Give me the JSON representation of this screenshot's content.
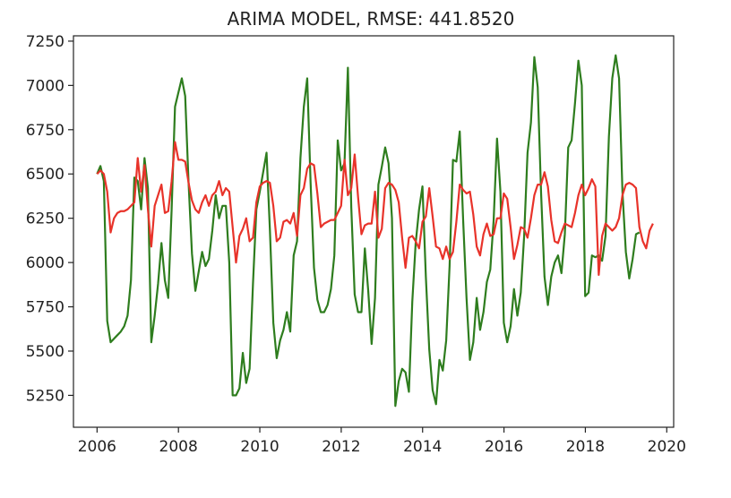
{
  "chart_data": {
    "type": "line",
    "title": "ARIMA MODEL, RMSE: 441.8520",
    "xlabel": "",
    "ylabel": "",
    "xlim": [
      2005.42,
      2020.17
    ],
    "ylim": [
      5070,
      7280
    ],
    "x_ticks": [
      2006,
      2008,
      2010,
      2012,
      2014,
      2016,
      2018,
      2020
    ],
    "y_ticks": [
      5250,
      5500,
      5750,
      6000,
      6250,
      6500,
      6750,
      7000,
      7250
    ],
    "grid": false,
    "legend": "none",
    "series": [
      {
        "color": "#2e7d1e",
        "x_start": 2006.0,
        "x_step": 0.0833,
        "values": [
          6500,
          6545,
          6460,
          5670,
          5550,
          5570,
          5590,
          5610,
          5640,
          5700,
          5900,
          6480,
          6460,
          6300,
          6590,
          6420,
          5550,
          5700,
          5880,
          6110,
          5900,
          5800,
          6300,
          6880,
          6960,
          7040,
          6940,
          6450,
          6050,
          5840,
          5950,
          6060,
          5980,
          6020,
          6180,
          6380,
          6250,
          6320,
          6320,
          6000,
          5250,
          5250,
          5290,
          5490,
          5320,
          5400,
          5880,
          6300,
          6400,
          6510,
          6620,
          6180,
          5660,
          5460,
          5560,
          5620,
          5720,
          5610,
          6040,
          6120,
          6590,
          6880,
          7040,
          6450,
          5970,
          5790,
          5720,
          5720,
          5760,
          5850,
          6040,
          6690,
          6520,
          6560,
          7100,
          6310,
          5820,
          5720,
          5720,
          6080,
          5840,
          5540,
          5800,
          6440,
          6540,
          6650,
          6560,
          6250,
          5190,
          5330,
          5400,
          5380,
          5270,
          5780,
          6110,
          6300,
          6430,
          5920,
          5510,
          5280,
          5200,
          5450,
          5390,
          5560,
          5980,
          6580,
          6570,
          6740,
          6240,
          5800,
          5450,
          5550,
          5800,
          5620,
          5720,
          5890,
          5960,
          6240,
          6700,
          6400,
          5660,
          5550,
          5640,
          5850,
          5700,
          5830,
          6150,
          6620,
          6790,
          7160,
          6990,
          6390,
          5920,
          5760,
          5920,
          6000,
          6040,
          5940,
          6160,
          6650,
          6690,
          6900,
          7140,
          7000,
          5810,
          5830,
          6040,
          6030,
          6040,
          6010,
          6150,
          6710,
          7040,
          7170,
          7040,
          6400,
          6060,
          5910,
          6020,
          6160,
          6170
        ]
      },
      {
        "color": "#e8332a",
        "x_start": 2006.0,
        "x_step": 0.0833,
        "values": [
          6500,
          6520,
          6500,
          6400,
          6170,
          6250,
          6280,
          6290,
          6290,
          6300,
          6320,
          6340,
          6590,
          6400,
          6550,
          6300,
          6090,
          6320,
          6380,
          6440,
          6280,
          6290,
          6460,
          6680,
          6580,
          6580,
          6570,
          6450,
          6350,
          6300,
          6280,
          6340,
          6380,
          6320,
          6380,
          6400,
          6460,
          6380,
          6420,
          6400,
          6200,
          6000,
          6150,
          6190,
          6250,
          6120,
          6140,
          6340,
          6430,
          6450,
          6460,
          6450,
          6320,
          6120,
          6140,
          6230,
          6240,
          6220,
          6280,
          6150,
          6380,
          6420,
          6530,
          6560,
          6550,
          6390,
          6200,
          6220,
          6230,
          6240,
          6240,
          6280,
          6320,
          6580,
          6380,
          6420,
          6610,
          6370,
          6160,
          6210,
          6220,
          6220,
          6400,
          6140,
          6190,
          6420,
          6450,
          6440,
          6410,
          6340,
          6140,
          5970,
          6140,
          6150,
          6120,
          6080,
          6230,
          6260,
          6420,
          6260,
          6090,
          6080,
          6020,
          6090,
          6020,
          6060,
          6230,
          6440,
          6410,
          6390,
          6400,
          6270,
          6090,
          6040,
          6160,
          6220,
          6150,
          6160,
          6250,
          6250,
          6390,
          6360,
          6200,
          6020,
          6100,
          6200,
          6190,
          6140,
          6250,
          6380,
          6440,
          6440,
          6510,
          6430,
          6240,
          6120,
          6110,
          6170,
          6220,
          6210,
          6200,
          6280,
          6380,
          6440,
          6380,
          6420,
          6470,
          6430,
          5930,
          6150,
          6220,
          6200,
          6180,
          6200,
          6250,
          6380,
          6440,
          6450,
          6440,
          6420,
          6200,
          6120,
          6080,
          6180,
          6220
        ]
      }
    ]
  }
}
